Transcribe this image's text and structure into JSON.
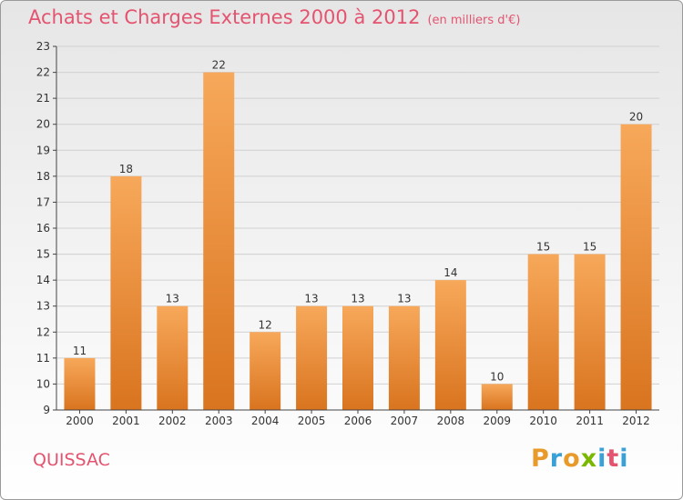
{
  "header": {
    "title": "Achats et Charges Externes 2000 à 2012",
    "subtitle": "(en milliers d'€)"
  },
  "footer": {
    "city": "QUISSAC",
    "brand": "Proxiti"
  },
  "colors": {
    "title": "#e4536f",
    "bar_top": "#f7a85a",
    "bar_bottom": "#d9741f",
    "axis": "#444444",
    "grid": "#d0d0d0",
    "logo_letters": [
      "#e89a2a",
      "#3aa0d8",
      "#e89a2a",
      "#7ab800",
      "#3aa0d8",
      "#e4536f",
      "#3aa0d8"
    ]
  },
  "chart_data": {
    "type": "bar",
    "categories": [
      "2000",
      "2001",
      "2002",
      "2003",
      "2004",
      "2005",
      "2006",
      "2007",
      "2008",
      "2009",
      "2010",
      "2011",
      "2012"
    ],
    "values": [
      11,
      18,
      13,
      22,
      12,
      13,
      13,
      13,
      14,
      10,
      15,
      15,
      20
    ],
    "title": "Achats et Charges Externes 2000 à 2012",
    "xlabel": "",
    "ylabel": "",
    "ylim": [
      9,
      23
    ],
    "yticks": [
      9,
      10,
      11,
      12,
      13,
      14,
      15,
      16,
      17,
      18,
      19,
      20,
      21,
      22,
      23
    ],
    "grid": true,
    "data_labels": true
  }
}
